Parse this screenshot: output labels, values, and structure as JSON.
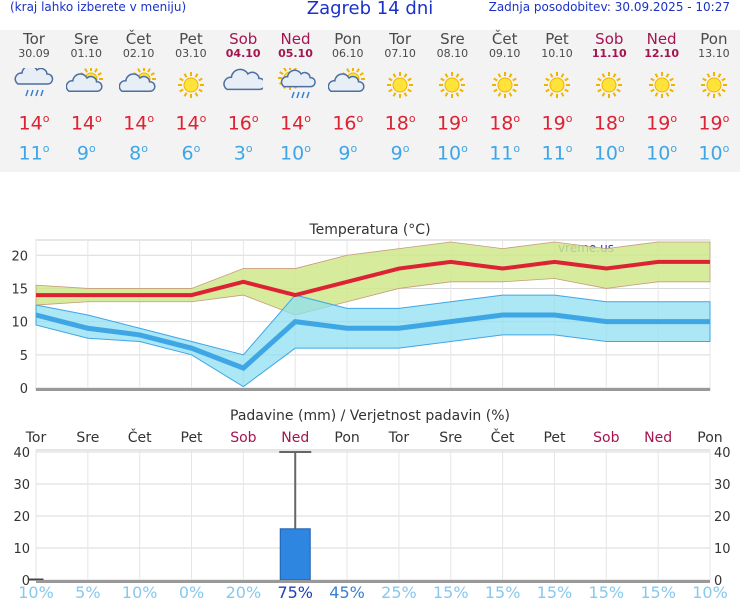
{
  "header": {
    "menu_hint": "(kraj lahko izberete v meniju)",
    "title": "Zagreb 14 dni",
    "updated": "Zadnja posodobitev: 30.09.2025 - 10:27"
  },
  "days": [
    {
      "name": "Tor",
      "date": "30.09",
      "icon": "cloud-rain-icon",
      "max": "14",
      "min": "11",
      "weekend": false
    },
    {
      "name": "Sre",
      "date": "01.10",
      "icon": "sun-cloud-icon",
      "max": "14",
      "min": "9",
      "weekend": false
    },
    {
      "name": "Čet",
      "date": "02.10",
      "icon": "sun-cloud-icon",
      "max": "14",
      "min": "8",
      "weekend": false
    },
    {
      "name": "Pet",
      "date": "03.10",
      "icon": "sun-icon",
      "max": "14",
      "min": "6",
      "weekend": false
    },
    {
      "name": "Sob",
      "date": "04.10",
      "icon": "cloud-icon",
      "max": "16",
      "min": "3",
      "weekend": true
    },
    {
      "name": "Ned",
      "date": "05.10",
      "icon": "sun-cloud-rain-icon",
      "max": "14",
      "min": "10",
      "weekend": true
    },
    {
      "name": "Pon",
      "date": "06.10",
      "icon": "sun-cloud-icon",
      "max": "16",
      "min": "9",
      "weekend": false
    },
    {
      "name": "Tor",
      "date": "07.10",
      "icon": "sun-icon",
      "max": "18",
      "min": "9",
      "weekend": false
    },
    {
      "name": "Sre",
      "date": "08.10",
      "icon": "sun-icon",
      "max": "19",
      "min": "10",
      "weekend": false
    },
    {
      "name": "Čet",
      "date": "09.10",
      "icon": "sun-icon",
      "max": "18",
      "min": "11",
      "weekend": false
    },
    {
      "name": "Pet",
      "date": "10.10",
      "icon": "sun-icon",
      "max": "19",
      "min": "11",
      "weekend": false
    },
    {
      "name": "Sob",
      "date": "11.10",
      "icon": "sun-icon",
      "max": "18",
      "min": "10",
      "weekend": true
    },
    {
      "name": "Ned",
      "date": "12.10",
      "icon": "sun-icon",
      "max": "19",
      "min": "10",
      "weekend": true
    },
    {
      "name": "Pon",
      "date": "13.10",
      "icon": "sun-icon",
      "max": "19",
      "min": "10",
      "weekend": false
    }
  ],
  "degree_symbol": "o",
  "colors": {
    "max": "#dd2233",
    "min": "#3fa6e6",
    "weekend": "#a4154f",
    "bar": "#2e86e0",
    "max_band": "#cfe88a",
    "min_band": "#8fdff0"
  },
  "chart_data": [
    {
      "type": "line",
      "title": "Temperatura (°C)",
      "watermark": "vreme.us",
      "ylim": [
        0,
        22
      ],
      "yticks": [
        0,
        5,
        10,
        15,
        20
      ],
      "x": [
        "Tor",
        "Sre",
        "Čet",
        "Pet",
        "Sob",
        "Ned",
        "Pon",
        "Tor",
        "Sre",
        "Čet",
        "Pet",
        "Sob",
        "Ned",
        "Pon"
      ],
      "series": [
        {
          "role": "max",
          "values": [
            14,
            14,
            14,
            14,
            16,
            14,
            16,
            18,
            19,
            18,
            19,
            18,
            19,
            19
          ],
          "band_low": [
            12.5,
            13,
            13,
            13,
            14,
            11,
            13,
            15,
            16,
            16,
            16.5,
            15,
            16,
            16
          ],
          "band_high": [
            15.5,
            15,
            15,
            15,
            18,
            18,
            20,
            21,
            22,
            21,
            22,
            21,
            22,
            22
          ]
        },
        {
          "role": "min",
          "values": [
            11,
            9,
            8,
            6,
            3,
            10,
            9,
            9,
            10,
            11,
            11,
            10,
            10,
            10
          ],
          "band_low": [
            9.5,
            7.5,
            7,
            5,
            0.2,
            6,
            6,
            6,
            7,
            8,
            8,
            7,
            7,
            7
          ],
          "band_high": [
            12.5,
            11,
            9,
            7,
            5,
            14,
            12,
            12,
            13,
            14,
            14,
            13,
            13,
            13
          ]
        }
      ]
    },
    {
      "type": "bar",
      "title": "Padavine (mm) / Verjetnost padavin (%)",
      "categories": [
        "Tor",
        "Sre",
        "Čet",
        "Pet",
        "Sob",
        "Ned",
        "Pon",
        "Tor",
        "Sre",
        "Čet",
        "Pet",
        "Sob",
        "Ned",
        "Pon"
      ],
      "values": [
        0.3,
        0,
        0,
        0,
        0,
        16,
        0,
        0,
        0,
        0,
        0,
        0,
        0,
        0
      ],
      "range_max": [
        0,
        0,
        0,
        0,
        0,
        40,
        0,
        0,
        0,
        0,
        0,
        0,
        0,
        0
      ],
      "probability": [
        "10%",
        "5%",
        "10%",
        "0%",
        "20%",
        "75%",
        "45%",
        "25%",
        "15%",
        "15%",
        "15%",
        "15%",
        "15%",
        "10%"
      ],
      "ylim": [
        0,
        40
      ],
      "yticks": [
        0,
        10,
        20,
        30,
        40
      ]
    }
  ]
}
